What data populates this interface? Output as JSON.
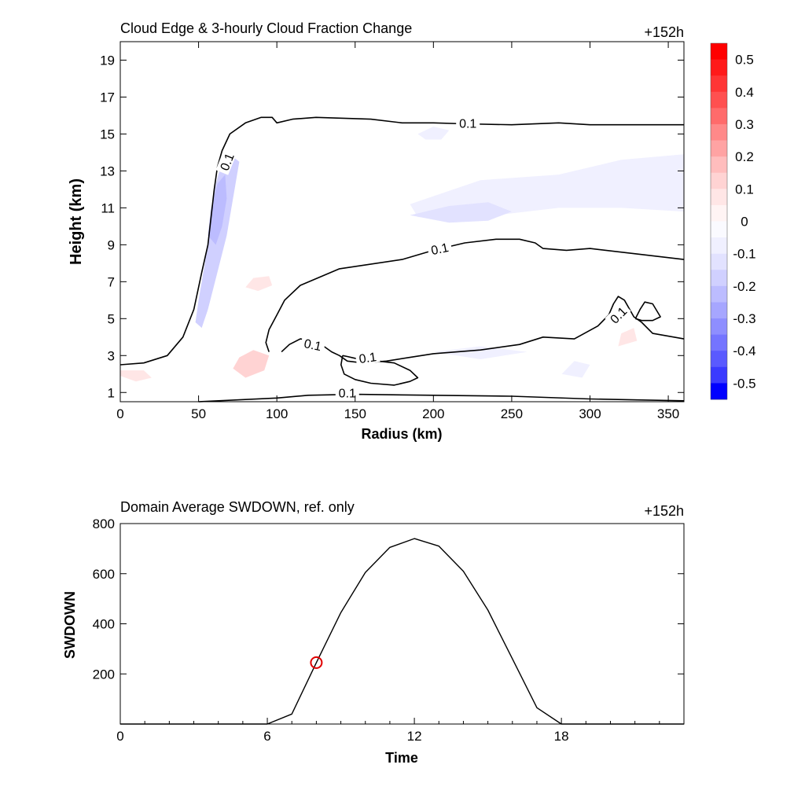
{
  "chart_data": [
    {
      "type": "contour",
      "title": "Cloud Edge & 3-hourly Cloud Fraction Change",
      "time_label": "+152h",
      "xlabel": "Radius (km)",
      "ylabel": "Height (km)",
      "xlim": [
        0,
        360
      ],
      "ylim": [
        0.5,
        20
      ],
      "xticks": [
        "0",
        "50",
        "100",
        "150",
        "200",
        "250",
        "300",
        "350"
      ],
      "yticks": [
        "1",
        "3",
        "5",
        "7",
        "9",
        "11",
        "13",
        "15",
        "17",
        "19"
      ],
      "contour_level": "0.1",
      "cloud_edge_contours": [
        {
          "name": "outflow-and-eyewall",
          "points": [
            [
              0,
              2.5
            ],
            [
              15,
              2.6
            ],
            [
              30,
              3
            ],
            [
              40,
              4
            ],
            [
              47,
              5.5
            ],
            [
              52,
              7.5
            ],
            [
              56,
              9
            ],
            [
              58,
              10.5
            ],
            [
              60,
              12
            ],
            [
              62,
              13.2
            ],
            [
              65,
              14.1
            ],
            [
              70,
              15
            ],
            [
              80,
              15.6
            ],
            [
              90,
              15.9
            ],
            [
              97,
              15.9
            ],
            [
              100,
              15.6
            ],
            [
              110,
              15.8
            ],
            [
              125,
              15.9
            ],
            [
              160,
              15.8
            ],
            [
              180,
              15.6
            ],
            [
              200,
              15.6
            ],
            [
              220,
              15.55
            ],
            [
              250,
              15.5
            ],
            [
              280,
              15.6
            ],
            [
              300,
              15.5
            ],
            [
              360,
              15.5
            ]
          ]
        },
        {
          "name": "mid-level-cloud",
          "points": [
            [
              95,
              3.2
            ],
            [
              93,
              3.7
            ],
            [
              95,
              4.4
            ],
            [
              100,
              5.2
            ],
            [
              105,
              6
            ],
            [
              115,
              6.8
            ],
            [
              140,
              7.7
            ],
            [
              180,
              8.2
            ],
            [
              200,
              8.7
            ],
            [
              220,
              9.1
            ],
            [
              240,
              9.3
            ],
            [
              255,
              9.3
            ],
            [
              265,
              9.1
            ],
            [
              270,
              8.8
            ],
            [
              285,
              8.7
            ],
            [
              300,
              8.8
            ],
            [
              330,
              8.5
            ],
            [
              360,
              8.2
            ]
          ]
        },
        {
          "name": "mid-level-base",
          "points": [
            [
              103,
              3.2
            ],
            [
              108,
              3.6
            ],
            [
              115,
              3.9
            ],
            [
              123,
              3.8
            ],
            [
              130,
              3.5
            ],
            [
              135,
              3.2
            ],
            [
              140,
              3.0
            ],
            [
              145,
              2.7
            ],
            [
              155,
              2.6
            ],
            [
              170,
              2.7
            ],
            [
              185,
              2.9
            ],
            [
              200,
              3.1
            ],
            [
              230,
              3.3
            ],
            [
              255,
              3.6
            ],
            [
              270,
              4.0
            ],
            [
              290,
              3.9
            ],
            [
              305,
              4.6
            ],
            [
              312,
              5.2
            ],
            [
              315,
              5.8
            ],
            [
              318,
              6.2
            ],
            [
              322,
              6.0
            ],
            [
              328,
              5.1
            ],
            [
              333,
              4.8
            ],
            [
              340,
              4.2
            ],
            [
              350,
              4.05
            ],
            [
              360,
              3.9
            ]
          ]
        },
        {
          "name": "lower-cell",
          "points": [
            [
              142,
              3.0
            ],
            [
              141,
              2.5
            ],
            [
              143,
              2.0
            ],
            [
              150,
              1.7
            ],
            [
              160,
              1.5
            ],
            [
              175,
              1.4
            ],
            [
              185,
              1.6
            ],
            [
              190,
              1.8
            ],
            [
              185,
              2.2
            ],
            [
              175,
              2.6
            ],
            [
              160,
              2.75
            ],
            [
              150,
              2.85
            ],
            [
              145,
              2.95
            ],
            [
              142,
              3.0
            ]
          ]
        },
        {
          "name": "right-pocket",
          "points": [
            [
              329,
              5.0
            ],
            [
              332,
              5.5
            ],
            [
              335,
              5.9
            ],
            [
              340,
              5.8
            ],
            [
              345,
              5.1
            ],
            [
              340,
              4.9
            ],
            [
              333,
              4.9
            ],
            [
              329,
              5.0
            ]
          ]
        },
        {
          "name": "surface-layer",
          "points": [
            [
              50,
              0.5
            ],
            [
              100,
              0.7
            ],
            [
              120,
              0.85
            ],
            [
              150,
              0.9
            ],
            [
              200,
              0.85
            ],
            [
              250,
              0.8
            ],
            [
              300,
              0.65
            ],
            [
              330,
              0.6
            ],
            [
              360,
              0.55
            ]
          ]
        }
      ],
      "change_regions": [
        {
          "name": "eyewall-negative",
          "value": -0.2,
          "points": [
            [
              50,
              6
            ],
            [
              54,
              8
            ],
            [
              57,
              10
            ],
            [
              60,
              12
            ],
            [
              64,
              13.2
            ],
            [
              70,
              13.9
            ],
            [
              76,
              13.5
            ],
            [
              72,
              11.5
            ],
            [
              68,
              9.5
            ],
            [
              62,
              7.5
            ],
            [
              56,
              5.5
            ],
            [
              52,
              4.5
            ],
            [
              48,
              4.8
            ]
          ]
        },
        {
          "name": "eyewall-core",
          "value": -0.25,
          "points": [
            [
              56,
              9.5
            ],
            [
              58,
              11
            ],
            [
              62,
              12.3
            ],
            [
              67,
              12.8
            ],
            [
              68,
              11.5
            ],
            [
              65,
              10
            ],
            [
              61,
              9
            ]
          ]
        },
        {
          "name": "upper-right-negative",
          "value": -0.2,
          "points": [
            [
              300,
              11.5
            ],
            [
              320,
              12.6
            ],
            [
              340,
              12.9
            ],
            [
              360,
              12.7
            ],
            [
              360,
              11.2
            ],
            [
              340,
              11.5
            ],
            [
              320,
              11.4
            ]
          ]
        },
        {
          "name": "upper-right-broad",
          "value": -0.1,
          "points": [
            [
              185,
              11.2
            ],
            [
              230,
              12.5
            ],
            [
              280,
              12.8
            ],
            [
              320,
              13.6
            ],
            [
              360,
              13.9
            ],
            [
              360,
              10.8
            ],
            [
              320,
              11
            ],
            [
              280,
              11
            ],
            [
              230,
              10.5
            ],
            [
              190,
              10.5
            ]
          ]
        },
        {
          "name": "mid-band-negative",
          "value": -0.15,
          "points": [
            [
              185,
              10.6
            ],
            [
              210,
              11.1
            ],
            [
              235,
              11.3
            ],
            [
              250,
              10.8
            ],
            [
              235,
              10.3
            ],
            [
              210,
              10.2
            ]
          ]
        },
        {
          "name": "upper-patch",
          "value": -0.1,
          "points": [
            [
              190,
              15
            ],
            [
              200,
              15.4
            ],
            [
              210,
              15.2
            ],
            [
              205,
              14.7
            ],
            [
              195,
              14.7
            ]
          ]
        },
        {
          "name": "low-level-positive",
          "value": 0.1,
          "points": [
            [
              72,
              2.3
            ],
            [
              76,
              2.9
            ],
            [
              85,
              3.3
            ],
            [
              95,
              3.0
            ],
            [
              92,
              2.2
            ],
            [
              80,
              1.8
            ]
          ]
        },
        {
          "name": "mid-positive",
          "value": 0.05,
          "points": [
            [
              80,
              6.7
            ],
            [
              85,
              7.2
            ],
            [
              95,
              7.3
            ],
            [
              97,
              6.8
            ],
            [
              88,
              6.5
            ]
          ]
        },
        {
          "name": "left-surface-positive",
          "value": 0.05,
          "points": [
            [
              0,
              1.9
            ],
            [
              0,
              2.2
            ],
            [
              15,
              2.2
            ],
            [
              20,
              1.8
            ],
            [
              10,
              1.6
            ]
          ]
        },
        {
          "name": "right-positive",
          "value": 0.05,
          "points": [
            [
              318,
              3.5
            ],
            [
              320,
              4.2
            ],
            [
              328,
              4.5
            ],
            [
              330,
              3.8
            ]
          ]
        },
        {
          "name": "lower-negative",
          "value": -0.1,
          "points": [
            [
              200,
              3.2
            ],
            [
              230,
              3.5
            ],
            [
              260,
              3.2
            ],
            [
              230,
              2.8
            ]
          ]
        },
        {
          "name": "low-right-negative",
          "value": -0.1,
          "points": [
            [
              282,
              2.0
            ],
            [
              290,
              2.7
            ],
            [
              300,
              2.5
            ],
            [
              295,
              1.8
            ]
          ]
        }
      ],
      "contour_labels": [
        {
          "text": "0.1",
          "x": 222,
          "y": 15.6
        },
        {
          "text": "0.1",
          "x": 68,
          "y": 13.5,
          "rotation": -68
        },
        {
          "text": "0.1",
          "x": 204,
          "y": 8.8,
          "rotation": -12
        },
        {
          "text": "0.1",
          "x": 123,
          "y": 3.6,
          "rotation": 12
        },
        {
          "text": "0.1",
          "x": 158,
          "y": 2.9,
          "rotation": -8
        },
        {
          "text": "0.1",
          "x": 145,
          "y": 1.0
        },
        {
          "text": "0.1",
          "x": 318,
          "y": 5.2,
          "rotation": -45
        }
      ],
      "colorbar": {
        "levels": [
          "0.5",
          "0.4",
          "0.3",
          "0.2",
          "0.1",
          "0",
          "-0.1",
          "-0.2",
          "-0.3",
          "-0.4",
          "-0.5"
        ],
        "colors": [
          "#ff0000",
          "#ff1a1a",
          "#ff3535",
          "#ff5050",
          "#ff6b6b",
          "#ff8989",
          "#ffa3a3",
          "#ffbdbd",
          "#ffd3d3",
          "#ffe6e6",
          "#fff4f4",
          "#fafaff",
          "#f0f0ff",
          "#e2e2ff",
          "#d0d0ff",
          "#bcbcff",
          "#a6a6ff",
          "#8e8eff",
          "#7474ff",
          "#5a5aff",
          "#3a3aff",
          "#0000ff"
        ]
      }
    },
    {
      "type": "line",
      "title": "Domain Average SWDOWN, ref. only",
      "time_label": "+152h",
      "xlabel": "Time",
      "ylabel": "SWDOWN",
      "xlim": [
        0,
        23
      ],
      "ylim": [
        0,
        800
      ],
      "xticks": [
        "0",
        "6",
        "12",
        "18"
      ],
      "yticks": [
        "200",
        "400",
        "600",
        "800"
      ],
      "series": [
        {
          "x": [
            0,
            1,
            2,
            3,
            4,
            5,
            6,
            7,
            8,
            9,
            10,
            11,
            12,
            13,
            14,
            15,
            16,
            17,
            18,
            19,
            20,
            21,
            22,
            23
          ],
          "y": [
            0,
            0,
            0,
            0,
            0,
            0,
            0,
            40,
            245,
            445,
            605,
            705,
            740,
            710,
            610,
            455,
            260,
            65,
            0,
            0,
            0,
            0,
            0,
            0
          ],
          "color": "#000000"
        }
      ],
      "marker": {
        "x": 8,
        "y": 245,
        "color": "#e00000"
      }
    }
  ]
}
